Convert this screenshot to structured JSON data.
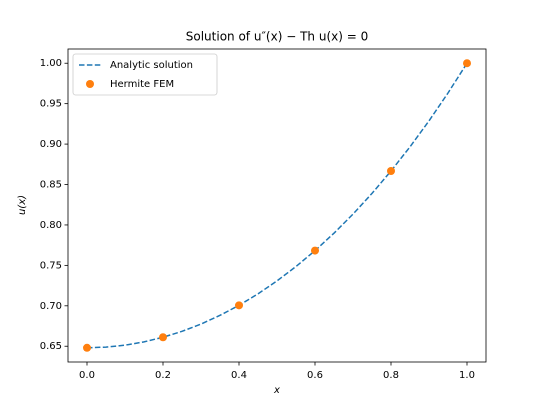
{
  "chart_data": {
    "type": "line",
    "title": "Solution of u″(x) − Th u(x) = 0",
    "xlabel": "x",
    "ylabel": "u(x)",
    "xlim": [
      -0.05,
      1.05
    ],
    "ylim": [
      0.6305,
      1.0176
    ],
    "xticks": [
      {
        "value": 0,
        "label": "0.0"
      },
      0.2,
      0.4,
      0.6,
      0.8,
      {
        "value": 1,
        "label": "1.0"
      }
    ],
    "yticks": [
      0.65,
      {
        "value": 0.7,
        "label": "0.70"
      },
      0.75,
      {
        "value": 0.8,
        "label": "0.80"
      },
      0.85,
      {
        "value": 0.9,
        "label": "0.90"
      },
      0.95,
      {
        "value": 1,
        "label": "1.00"
      }
    ],
    "legend": "upper left",
    "series": [
      {
        "name": "Analytic solution",
        "color": "#1f77b4",
        "style": "dashed",
        "x": [
          0,
          0.05,
          0.1,
          0.15,
          0.2,
          0.25,
          0.3,
          0.35,
          0.4,
          0.45,
          0.5,
          0.55,
          0.6,
          0.65,
          0.7,
          0.75,
          0.8,
          0.85,
          0.9,
          0.95,
          1
        ],
        "values": [
          0.6481,
          0.6489,
          0.6513,
          0.6554,
          0.6611,
          0.6684,
          0.6774,
          0.6882,
          0.7006,
          0.7148,
          0.7308,
          0.7486,
          0.7682,
          0.7898,
          0.8134,
          0.839,
          0.8667,
          0.8966,
          0.9287,
          0.9632,
          1
        ]
      },
      {
        "name": "Hermite FEM",
        "color": "#ff7f0e",
        "style": "markers",
        "x": [
          0,
          0.2,
          0.4,
          0.6,
          0.8,
          1
        ],
        "values": [
          0.6481,
          0.6611,
          0.7006,
          0.7683,
          0.8667,
          1
        ]
      }
    ]
  }
}
